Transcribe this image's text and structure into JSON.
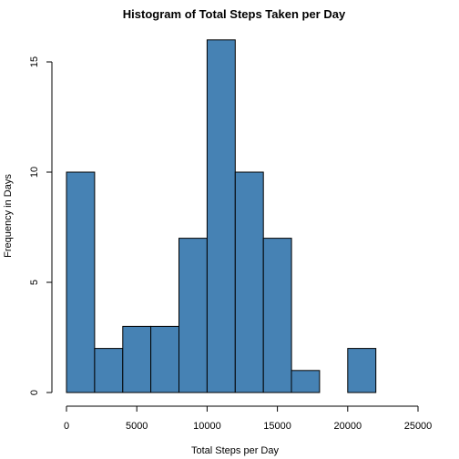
{
  "chart_data": {
    "type": "bar",
    "title": "Histogram of Total Steps Taken per Day",
    "xlabel": "Total Steps per Day",
    "ylabel": "Frequency in Days",
    "bins": [
      {
        "start": 0,
        "end": 2000,
        "count": 10
      },
      {
        "start": 2000,
        "end": 4000,
        "count": 2
      },
      {
        "start": 4000,
        "end": 6000,
        "count": 3
      },
      {
        "start": 6000,
        "end": 8000,
        "count": 3
      },
      {
        "start": 8000,
        "end": 10000,
        "count": 7
      },
      {
        "start": 10000,
        "end": 12000,
        "count": 16
      },
      {
        "start": 12000,
        "end": 14000,
        "count": 10
      },
      {
        "start": 14000,
        "end": 16000,
        "count": 7
      },
      {
        "start": 16000,
        "end": 18000,
        "count": 1
      },
      {
        "start": 18000,
        "end": 20000,
        "count": 0
      },
      {
        "start": 20000,
        "end": 22000,
        "count": 2
      }
    ],
    "xlim": [
      0,
      25000
    ],
    "ylim": [
      0,
      16
    ],
    "x_ticks": [
      0,
      5000,
      10000,
      15000,
      20000,
      25000
    ],
    "y_ticks": [
      0,
      5,
      10,
      15
    ],
    "bar_color": "#4682b4",
    "grid": false,
    "legend": "none"
  }
}
